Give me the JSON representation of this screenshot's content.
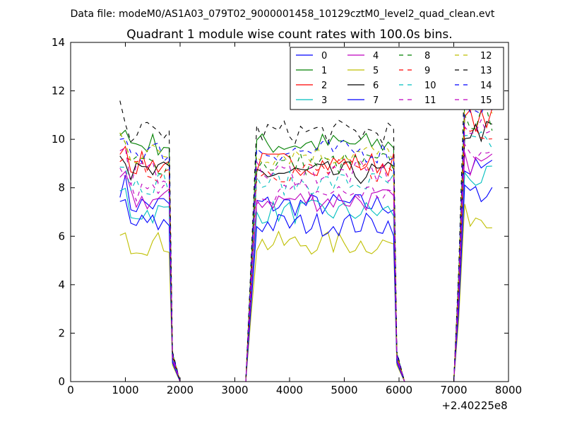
{
  "chart_data": {
    "type": "line",
    "suptitle": "Data file: modeM0/AS1A03_079T02_9000001458_10129cztM0_level2_quad_clean.evt",
    "title": "Quadrant 1 module wise count rates with 100.0s bins.",
    "xlabel": "",
    "ylabel": "",
    "x_offset_label": "+2.40225e8",
    "xlim": [
      0,
      8000
    ],
    "ylim": [
      0,
      14
    ],
    "xticks": [
      0,
      1000,
      2000,
      3000,
      4000,
      5000,
      6000,
      7000,
      8000
    ],
    "yticks": [
      0,
      2,
      4,
      6,
      8,
      10,
      12,
      14
    ],
    "grid": false,
    "legend_placement": "top-right",
    "segments": [
      {
        "from": 900,
        "to": 1800,
        "type": "active"
      },
      {
        "from": 1800,
        "to": 2000,
        "type": "drop"
      },
      {
        "from": 2000,
        "to": 3200,
        "type": "zero"
      },
      {
        "from": 3200,
        "to": 3400,
        "type": "rise"
      },
      {
        "from": 3400,
        "to": 5900,
        "type": "active"
      },
      {
        "from": 5900,
        "to": 6100,
        "type": "drop"
      },
      {
        "from": 6100,
        "to": 7000,
        "type": "zero"
      },
      {
        "from": 7000,
        "to": 7200,
        "type": "rise"
      },
      {
        "from": 7200,
        "to": 7700,
        "type": "active"
      }
    ],
    "series": [
      {
        "name": "0",
        "color": "#0000ff",
        "dash": "solid",
        "level": 7.3
      },
      {
        "name": "1",
        "color": "#008000",
        "dash": "solid",
        "level": 9.8
      },
      {
        "name": "2",
        "color": "#ff0000",
        "dash": "solid",
        "level": 9.0
      },
      {
        "name": "3",
        "color": "#00bfbf",
        "dash": "solid",
        "level": 7.0
      },
      {
        "name": "4",
        "color": "#bf00bf",
        "dash": "solid",
        "level": 7.5
      },
      {
        "name": "5",
        "color": "#bfbf00",
        "dash": "solid",
        "level": 5.7
      },
      {
        "name": "6",
        "color": "#000000",
        "dash": "solid",
        "level": 8.6
      },
      {
        "name": "7",
        "color": "#0000ff",
        "dash": "solid",
        "level": 6.5
      },
      {
        "name": "8",
        "color": "#008000",
        "dash": "dashed",
        "level": 9.0
      },
      {
        "name": "9",
        "color": "#ff0000",
        "dash": "dashed",
        "level": 8.7
      },
      {
        "name": "10",
        "color": "#00bfbf",
        "dash": "dashed",
        "level": 8.2
      },
      {
        "name": "11",
        "color": "#bf00bf",
        "dash": "dashed",
        "level": 7.8
      },
      {
        "name": "12",
        "color": "#bfbf00",
        "dash": "dashed",
        "level": 9.4
      },
      {
        "name": "13",
        "color": "#000000",
        "dash": "dashed",
        "level": 10.3
      },
      {
        "name": "14",
        "color": "#0000ff",
        "dash": "dashed",
        "level": 9.5
      },
      {
        "name": "15",
        "color": "#bf00bf",
        "dash": "dashed",
        "level": 8.6
      }
    ]
  }
}
